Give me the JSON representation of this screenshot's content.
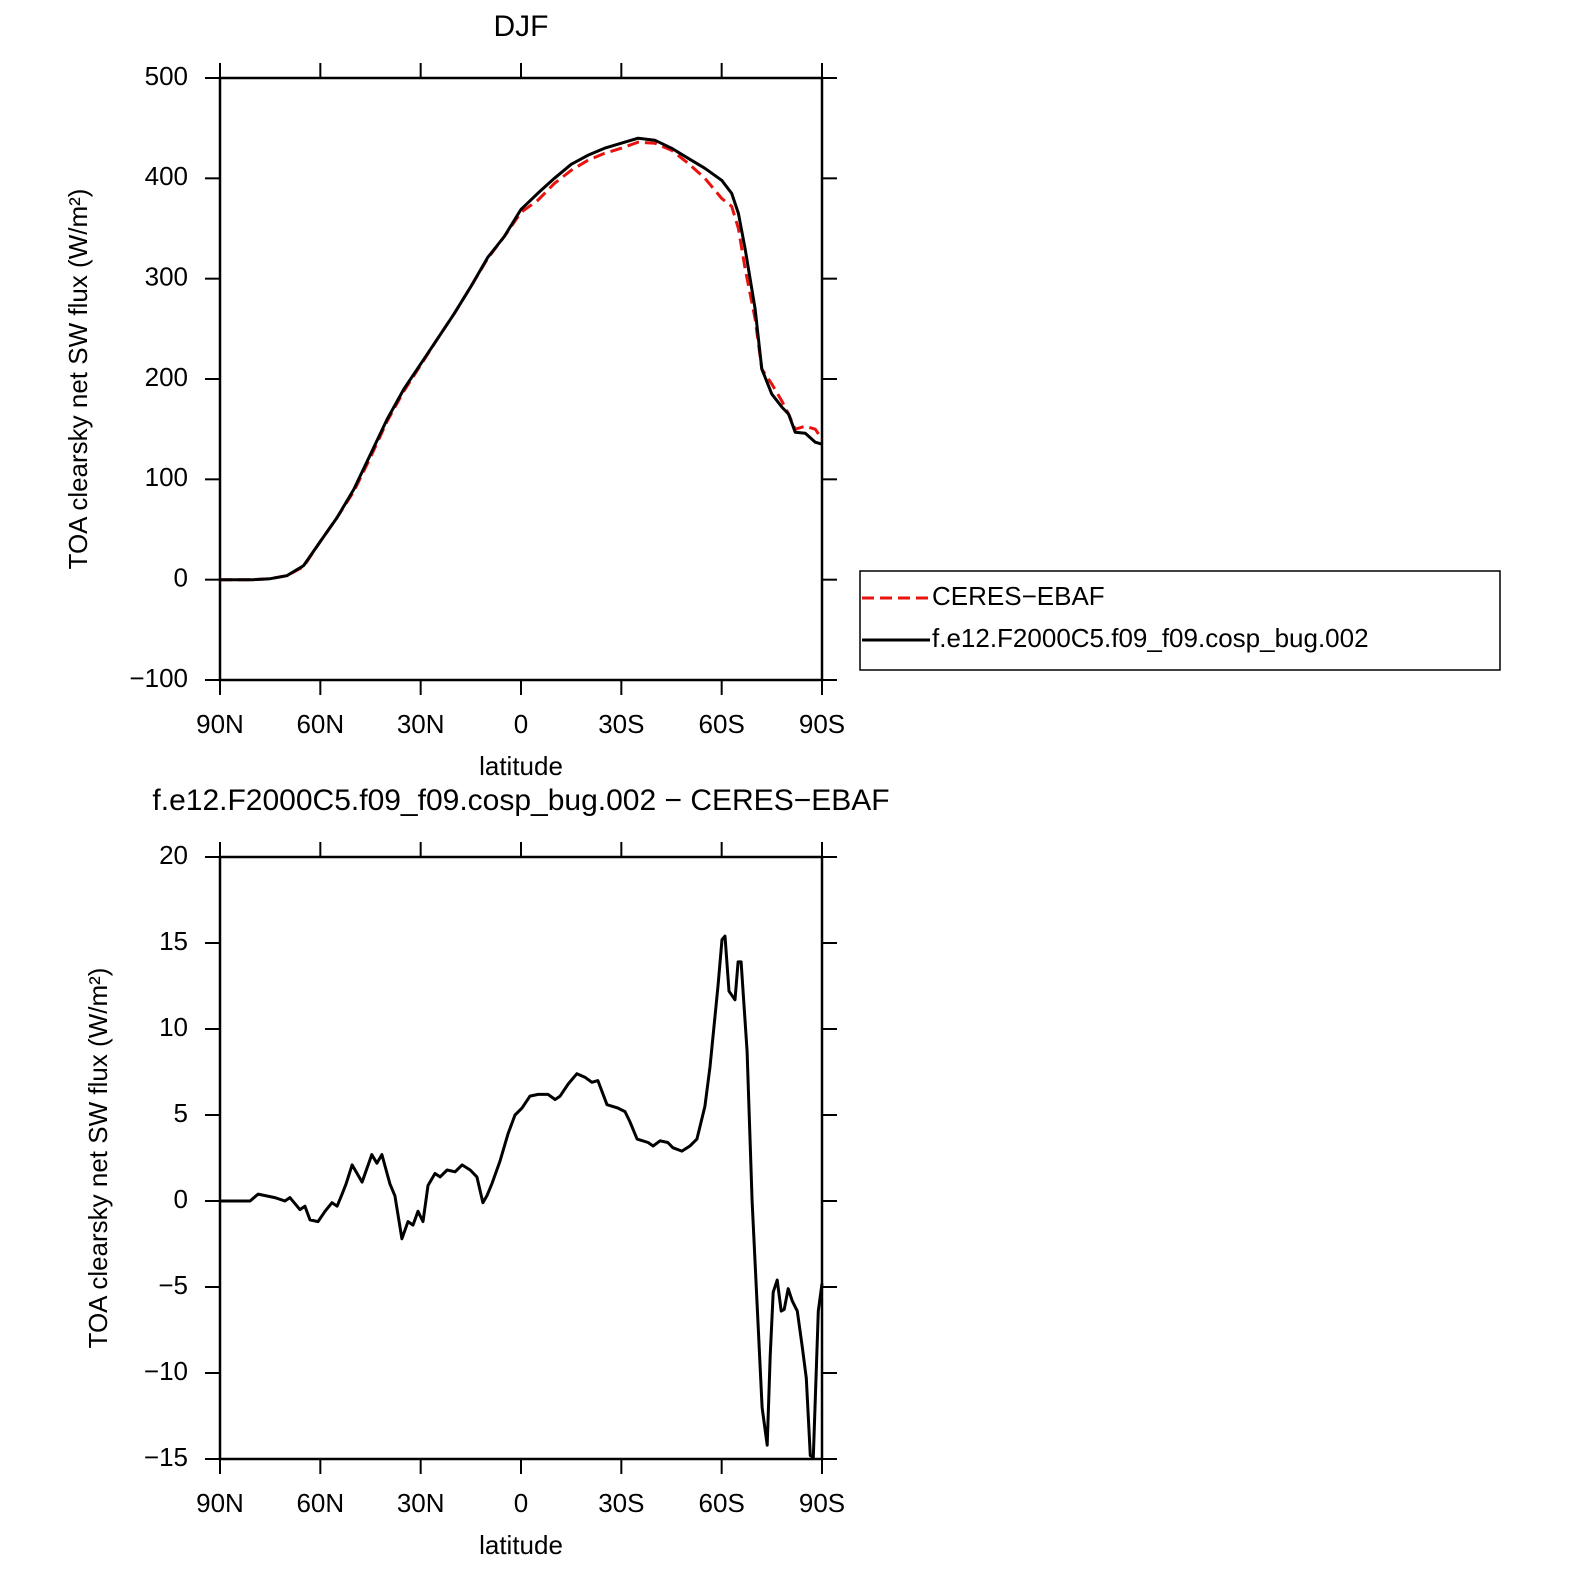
{
  "chart_data": [
    {
      "type": "line",
      "title": "DJF",
      "xlabel": "latitude",
      "ylabel": "TOA clearsky net SW flux (W/m²)",
      "x": [
        90,
        85,
        80,
        75,
        70,
        65,
        60,
        55,
        50,
        45,
        40,
        35,
        30,
        25,
        20,
        15,
        10,
        5,
        0,
        -5,
        -10,
        -15,
        -20,
        -25,
        -30,
        -35,
        -40,
        -45,
        -50,
        -55,
        -60,
        -63,
        -65,
        -67,
        -70,
        -72,
        -75,
        -78,
        -80,
        -82,
        -85,
        -88,
        -90
      ],
      "series": [
        {
          "name": "CERES−EBAF",
          "color": "#e8130f",
          "dashed": true,
          "values": [
            0,
            0,
            0,
            1,
            4,
            13,
            38,
            62,
            88,
            122,
            158,
            188,
            214,
            240,
            265,
            292,
            320,
            342,
            366,
            378,
            395,
            408,
            418,
            425,
            430,
            436,
            435,
            428,
            415,
            400,
            380,
            372,
            350,
            310,
            260,
            210,
            195,
            178,
            165,
            150,
            153,
            150,
            140
          ]
        },
        {
          "name": "f.e12.F2000C5.f09_f09.cosp_bug.002",
          "color": "#000000",
          "dashed": false,
          "values": [
            0,
            0,
            0,
            1,
            4,
            14,
            38,
            62,
            90,
            125,
            160,
            190,
            215,
            240,
            265,
            292,
            321,
            342,
            369,
            385,
            400,
            414,
            423,
            430,
            435,
            440,
            438,
            430,
            420,
            410,
            398,
            385,
            365,
            330,
            270,
            210,
            185,
            172,
            165,
            147,
            146,
            137,
            135
          ]
        }
      ],
      "xlim": [
        90,
        -90
      ],
      "xticks": [
        {
          "value": 90,
          "label": "90N"
        },
        {
          "value": 60,
          "label": "60N"
        },
        {
          "value": 30,
          "label": "30N"
        },
        0,
        {
          "value": -30,
          "label": "30S"
        },
        {
          "value": -60,
          "label": "60S"
        },
        {
          "value": -90,
          "label": "90S"
        }
      ],
      "ylim": [
        -100,
        500
      ],
      "yticks": [
        {
          "value": -100,
          "label": "−100"
        },
        0,
        100,
        200,
        300,
        400,
        500
      ],
      "legend": "right"
    },
    {
      "type": "line",
      "title": "f.e12.F2000C5.f09_f09.cosp_bug.002 − CERES−EBAF",
      "xlabel": "latitude",
      "ylabel": "TOA clearsky net SW flux (W/m²)",
      "x": [
        90,
        81.0,
        78.6,
        73.6,
        70.6,
        69.1,
        66.1,
        64.6,
        63.1,
        60.7,
        58.6,
        56.5,
        55.0,
        53.5,
        52.3,
        50.5,
        49.0,
        47.5,
        44.6,
        43.1,
        41.6,
        39.2,
        37.7,
        35.6,
        33.8,
        32.3,
        30.8,
        29.3,
        27.8,
        25.7,
        24.2,
        22.1,
        19.7,
        17.6,
        15.2,
        13.2,
        11.4,
        10.2,
        8.7,
        6.3,
        3.9,
        1.8,
        -0.3,
        -2.7,
        -5.1,
        -8.1,
        -10.2,
        -11.7,
        -14.1,
        -16.7,
        -19.1,
        -21.2,
        -23.0,
        -25.7,
        -29.0,
        -31.1,
        -32.6,
        -34.7,
        -38.0,
        -39.5,
        -41.6,
        -43.9,
        -45.4,
        -48.1,
        -50.5,
        -52.6,
        -55.0,
        -56.5,
        -58.9,
        -60.1,
        -61.0,
        -62.2,
        -64.0,
        -64.9,
        -65.8,
        -67.6,
        -69.1,
        -70.6,
        -72.1,
        -73.6,
        -74.5,
        -75.4,
        -76.6,
        -77.8,
        -78.7,
        -79.9,
        -81.1,
        -82.6,
        -84.1,
        -85.3,
        -86.5,
        -87.4,
        -88.9,
        -90
      ],
      "series": [
        {
          "color": "#000000",
          "dashed": false,
          "values": [
            0,
            0,
            0.4,
            0.2,
            0,
            0.2,
            -0.5,
            -0.3,
            -1.1,
            -1.2,
            -0.6,
            -0.1,
            -0.3,
            0.4,
            1.0,
            2.1,
            1.6,
            1.1,
            2.7,
            2.2,
            2.7,
            1.0,
            0.3,
            -2.2,
            -1.2,
            -1.4,
            -0.6,
            -1.2,
            0.9,
            1.6,
            1.4,
            1.8,
            1.7,
            2.1,
            1.8,
            1.4,
            -0.1,
            0.3,
            1.0,
            2.3,
            3.9,
            5.0,
            5.4,
            6.1,
            6.2,
            6.2,
            5.9,
            6.1,
            6.8,
            7.4,
            7.2,
            6.9,
            7.0,
            5.6,
            5.4,
            5.2,
            4.6,
            3.6,
            3.4,
            3.2,
            3.5,
            3.4,
            3.1,
            2.9,
            3.2,
            3.6,
            5.5,
            7.8,
            12.5,
            15.2,
            15.4,
            12.2,
            11.7,
            13.9,
            13.9,
            8.7,
            0,
            -6,
            -12.0,
            -14.2,
            -9,
            -5.3,
            -4.6,
            -6.4,
            -6.3,
            -5.1,
            -5.8,
            -6.4,
            -8.5,
            -10.3,
            -14.8,
            -14.9,
            -6.4,
            -4.8
          ]
        }
      ],
      "xlim": [
        90,
        -90
      ],
      "xticks": [
        {
          "value": 90,
          "label": "90N"
        },
        {
          "value": 60,
          "label": "60N"
        },
        {
          "value": 30,
          "label": "30N"
        },
        0,
        {
          "value": -30,
          "label": "30S"
        },
        {
          "value": -60,
          "label": "60S"
        },
        {
          "value": -90,
          "label": "90S"
        }
      ],
      "ylim": [
        -15,
        20
      ],
      "yticks": [
        {
          "value": -15,
          "label": "−15"
        },
        {
          "value": -10,
          "label": "−10"
        },
        {
          "value": -5,
          "label": "−5"
        },
        0,
        5,
        10,
        15,
        20
      ]
    }
  ]
}
